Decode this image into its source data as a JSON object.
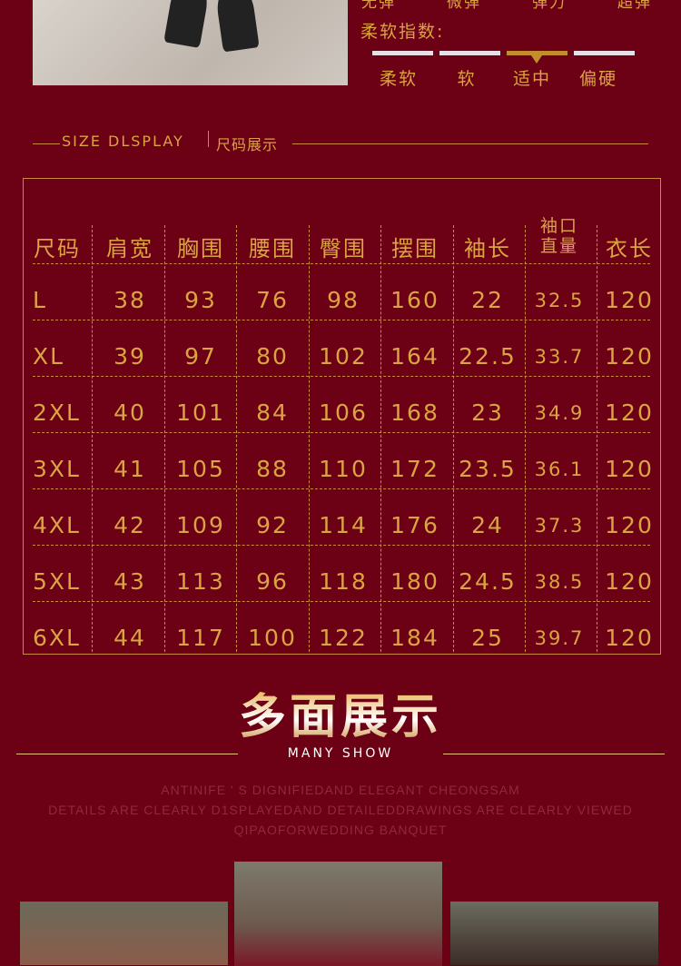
{
  "stretch_levels": [
    "无弹",
    "微弹",
    "弹力",
    "超弹"
  ],
  "softness": {
    "title": "柔软指数:",
    "levels": [
      "柔软",
      "软",
      "适中",
      "偏硬"
    ],
    "selected": "适中"
  },
  "size_display": {
    "title_en": "SIZE DLSPLAY",
    "title_cn": "尺码展示"
  },
  "table": {
    "headers": [
      "尺码",
      "肩宽",
      "胸围",
      "腰围",
      "臀围",
      "摆围",
      "袖长",
      "袖口直量",
      "衣长"
    ],
    "rows": [
      [
        "L",
        "38",
        "93",
        "76",
        "98",
        "160",
        "22",
        "32.5",
        "120"
      ],
      [
        "XL",
        "39",
        "97",
        "80",
        "102",
        "164",
        "22.5",
        "33.7",
        "120"
      ],
      [
        "2XL",
        "40",
        "101",
        "84",
        "106",
        "168",
        "23",
        "34.9",
        "120"
      ],
      [
        "3XL",
        "41",
        "105",
        "88",
        "110",
        "172",
        "23.5",
        "36.1",
        "120"
      ],
      [
        "4XL",
        "42",
        "109",
        "92",
        "114",
        "176",
        "24",
        "37.3",
        "120"
      ],
      [
        "5XL",
        "43",
        "113",
        "96",
        "118",
        "180",
        "24.5",
        "38.5",
        "120"
      ],
      [
        "6XL",
        "44",
        "117",
        "100",
        "122",
        "184",
        "25",
        "39.7",
        "120"
      ]
    ]
  },
  "many_show": {
    "title_cn": "多面展示",
    "title_en": "MANY SHOW",
    "desc": [
      "ANTINIFE ' S DIGNIFIEDAND ELEGANT CHEONGSAM",
      "DETAILS ARE CLEARLY D1SPLAYEDAND DETAILEDDRAWINGS ARE CLEARLY VIEWED",
      "QIPAOFORWEDDING BANQUET"
    ]
  },
  "colors": {
    "background": "#6c0015",
    "gold": "#d9a441",
    "accent": "#c38d2c"
  }
}
